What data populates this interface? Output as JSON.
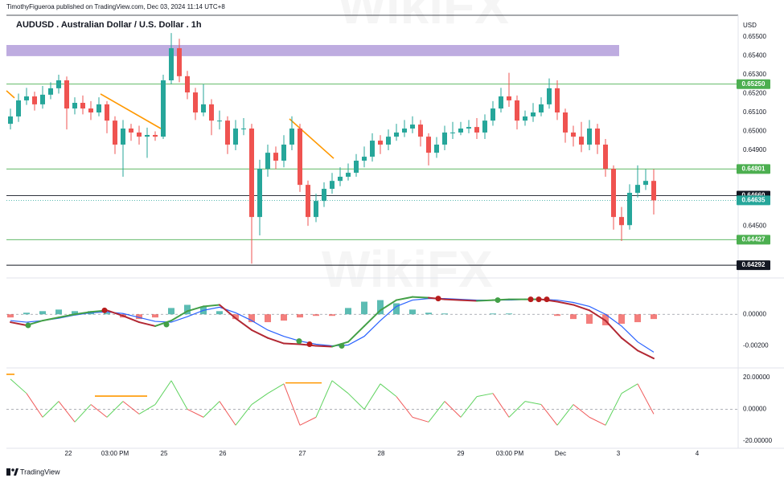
{
  "header": {
    "author_line": "TimothyFigueroa published on TradingView.com, Dec 03, 2024 11:14 UTC+8"
  },
  "watermark": "WikiFX",
  "footer": {
    "brand": "TradingView"
  },
  "chart_data": [
    {
      "type": "candlestick",
      "title": "AUDUSD . Australian Dollar / U.S. Dollar . 1h",
      "y_unit": "USD",
      "up_color": "#26a69a",
      "down_color": "#ef5350",
      "xlim": [
        -0.5,
        90.5
      ],
      "ylim": [
        0.6425,
        0.6561
      ],
      "yticks": [
        {
          "value": 0.655,
          "label": "0.65500"
        },
        {
          "value": 0.654,
          "label": "0.65400"
        },
        {
          "value": 0.653,
          "label": "0.65300"
        },
        {
          "value": 0.652,
          "label": "0.65200"
        },
        {
          "value": 0.651,
          "label": "0.65100"
        },
        {
          "value": 0.65,
          "label": "0.65000"
        },
        {
          "value": 0.649,
          "label": "0.64900"
        },
        {
          "value": 0.645,
          "label": "0.64500"
        }
      ],
      "zone": {
        "x": [
          -0.5,
          75.7
        ],
        "y": [
          0.65398,
          0.65457
        ],
        "color": "#b39ddb"
      },
      "levels": [
        {
          "value": 0.6525,
          "label": "0.65250",
          "color": "#4caf50",
          "style": "solid"
        },
        {
          "value": 0.64801,
          "label": "0.64801",
          "color": "#4caf50",
          "style": "solid"
        },
        {
          "value": 0.6466,
          "label": "0.64660",
          "color": "#131722",
          "style": "solid"
        },
        {
          "value": 0.64635,
          "label": "0.64635",
          "color": "#26a69a",
          "style": "dotted"
        },
        {
          "value": 0.64427,
          "label": "0.64427",
          "color": "#4caf50",
          "style": "solid"
        },
        {
          "value": 0.64292,
          "label": "0.64292",
          "color": "#131722",
          "style": "solid"
        }
      ],
      "drawings": [
        {
          "points": [
            [
              -0.5,
              0.65215
            ],
            [
              0.5,
              0.65177
            ]
          ],
          "color": "#ff9800"
        },
        {
          "points": [
            [
              11.2,
              0.65198
            ],
            [
              18.7,
              0.65015
            ]
          ],
          "color": "#ff9800"
        },
        {
          "points": [
            [
              34.7,
              0.65066
            ],
            [
              40.2,
              0.64857
            ]
          ],
          "color": "#ff9800"
        }
      ],
      "ohlc": [
        [
          0.6504,
          0.6512,
          0.6501,
          0.65079
        ],
        [
          0.65079,
          0.652,
          0.6505,
          0.65164
        ],
        [
          0.65164,
          0.6523,
          0.6514,
          0.65185
        ],
        [
          0.65185,
          0.6521,
          0.6511,
          0.65143
        ],
        [
          0.65143,
          0.6524,
          0.6512,
          0.65194
        ],
        [
          0.65194,
          0.6526,
          0.6517,
          0.65228
        ],
        [
          0.65228,
          0.653,
          0.652,
          0.6527
        ],
        [
          0.6527,
          0.6529,
          0.6501,
          0.65121
        ],
        [
          0.65121,
          0.6518,
          0.6509,
          0.65151
        ],
        [
          0.65151,
          0.6519,
          0.6509,
          0.65121
        ],
        [
          0.65121,
          0.6516,
          0.6506,
          0.651
        ],
        [
          0.651,
          0.6518,
          0.6508,
          0.65143
        ],
        [
          0.65143,
          0.6516,
          0.6499,
          0.65057
        ],
        [
          0.65057,
          0.6508,
          0.6488,
          0.6493
        ],
        [
          0.6493,
          0.6506,
          0.6476,
          0.65015
        ],
        [
          0.65015,
          0.6504,
          0.6495,
          0.64994
        ],
        [
          0.64994,
          0.6503,
          0.6493,
          0.64972
        ],
        [
          0.64972,
          0.6502,
          0.6486,
          0.64981
        ],
        [
          0.64981,
          0.65,
          0.6495,
          0.64972
        ],
        [
          0.64972,
          0.653,
          0.6496,
          0.6527
        ],
        [
          0.6527,
          0.6552,
          0.6525,
          0.6544
        ],
        [
          0.6544,
          0.6549,
          0.6526,
          0.65292
        ],
        [
          0.65292,
          0.6532,
          0.6517,
          0.65206
        ],
        [
          0.65206,
          0.6523,
          0.6506,
          0.651
        ],
        [
          0.651,
          0.6525,
          0.6508,
          0.65143
        ],
        [
          0.65143,
          0.6517,
          0.6498,
          0.65057
        ],
        [
          0.65057,
          0.6511,
          0.6501,
          0.65057
        ],
        [
          0.65057,
          0.6508,
          0.6488,
          0.6493
        ],
        [
          0.6493,
          0.6506,
          0.649,
          0.65015
        ],
        [
          0.65015,
          0.6507,
          0.6498,
          0.65015
        ],
        [
          0.65015,
          0.6504,
          0.643,
          0.64547
        ],
        [
          0.64547,
          0.6485,
          0.6445,
          0.64802
        ],
        [
          0.64802,
          0.6493,
          0.6476,
          0.64887
        ],
        [
          0.64887,
          0.6492,
          0.648,
          0.64845
        ],
        [
          0.64845,
          0.6498,
          0.6481,
          0.6493
        ],
        [
          0.6493,
          0.6508,
          0.649,
          0.65015
        ],
        [
          0.65015,
          0.6504,
          0.6468,
          0.64717
        ],
        [
          0.64717,
          0.6474,
          0.645,
          0.64547
        ],
        [
          0.64547,
          0.6467,
          0.6452,
          0.64632
        ],
        [
          0.64632,
          0.6473,
          0.646,
          0.64696
        ],
        [
          0.64696,
          0.6478,
          0.6467,
          0.64738
        ],
        [
          0.64738,
          0.6481,
          0.6471,
          0.6476
        ],
        [
          0.6476,
          0.6483,
          0.6474,
          0.64781
        ],
        [
          0.64781,
          0.6488,
          0.6476,
          0.64845
        ],
        [
          0.64845,
          0.6492,
          0.6481,
          0.64866
        ],
        [
          0.64866,
          0.6499,
          0.6484,
          0.64951
        ],
        [
          0.64951,
          0.6498,
          0.6488,
          0.6493
        ],
        [
          0.6493,
          0.6501,
          0.649,
          0.64972
        ],
        [
          0.64972,
          0.6504,
          0.6495,
          0.64994
        ],
        [
          0.64994,
          0.6506,
          0.6497,
          0.65015
        ],
        [
          0.65015,
          0.6508,
          0.6499,
          0.65036
        ],
        [
          0.65036,
          0.6506,
          0.6492,
          0.64972
        ],
        [
          0.64972,
          0.6499,
          0.6482,
          0.64887
        ],
        [
          0.64887,
          0.6497,
          0.6486,
          0.6493
        ],
        [
          0.6493,
          0.6503,
          0.649,
          0.64994
        ],
        [
          0.64994,
          0.6505,
          0.6496,
          0.64994
        ],
        [
          0.64994,
          0.6505,
          0.6498,
          0.65015
        ],
        [
          0.65015,
          0.6506,
          0.6499,
          0.65023
        ],
        [
          0.65023,
          0.6507,
          0.6496,
          0.64994
        ],
        [
          0.64994,
          0.6509,
          0.6496,
          0.65057
        ],
        [
          0.65057,
          0.6516,
          0.6503,
          0.65121
        ],
        [
          0.65121,
          0.6523,
          0.651,
          0.65185
        ],
        [
          0.65185,
          0.6531,
          0.6513,
          0.65164
        ],
        [
          0.65164,
          0.6519,
          0.6501,
          0.65057
        ],
        [
          0.65057,
          0.6511,
          0.6503,
          0.65079
        ],
        [
          0.65079,
          0.6515,
          0.6505,
          0.651
        ],
        [
          0.651,
          0.6518,
          0.6508,
          0.65143
        ],
        [
          0.65143,
          0.6528,
          0.6512,
          0.65228
        ],
        [
          0.65228,
          0.6527,
          0.6506,
          0.651
        ],
        [
          0.651,
          0.6512,
          0.6494,
          0.64994
        ],
        [
          0.64994,
          0.6503,
          0.6492,
          0.64972
        ],
        [
          0.64972,
          0.6505,
          0.6489,
          0.6493
        ],
        [
          0.6493,
          0.6506,
          0.649,
          0.65015
        ],
        [
          0.65015,
          0.6504,
          0.6488,
          0.6493
        ],
        [
          0.6493,
          0.6496,
          0.6476,
          0.64802
        ],
        [
          0.64802,
          0.6482,
          0.6448,
          0.64547
        ],
        [
          0.64547,
          0.646,
          0.6442,
          0.64504
        ],
        [
          0.64504,
          0.6472,
          0.6448,
          0.64675
        ],
        [
          0.64675,
          0.6482,
          0.6465,
          0.64717
        ],
        [
          0.64717,
          0.648,
          0.6469,
          0.64738
        ],
        [
          0.64738,
          0.648,
          0.6456,
          0.64635
        ]
      ]
    },
    {
      "type": "macd",
      "xlim": [
        -0.5,
        90.5
      ],
      "ylim": [
        -0.00325,
        0.002
      ],
      "yticks": [
        {
          "value": 0,
          "label": "0.00000"
        },
        {
          "value": -0.002,
          "label": "-0.00200"
        }
      ],
      "zero_line": "dashed",
      "x": [
        0,
        2,
        4,
        6,
        8,
        10,
        12,
        14,
        16,
        18,
        20,
        22,
        24,
        26,
        28,
        30,
        32,
        34,
        36,
        38,
        40,
        42,
        44,
        46,
        48,
        50,
        52,
        54,
        56,
        58,
        60,
        62,
        64,
        66,
        68,
        70,
        72,
        74,
        76,
        78,
        80
      ],
      "histogram": {
        "up_color": "#26a69a",
        "down_color": "#ef5350",
        "values": [
          -0.0002,
          0.0001,
          0.0002,
          0.0003,
          0.0002,
          0.0002,
          0.0001,
          -0.0002,
          -0.0003,
          -0.0002,
          0.0004,
          0.0006,
          0.0005,
          0.0002,
          -0.0003,
          -0.0005,
          -0.0005,
          -0.0004,
          -0.0002,
          -0.0001,
          -0.0001,
          0.0004,
          0.0008,
          0.0009,
          0.0007,
          0.0003,
          0.0001,
          5e-05,
          0,
          0,
          5e-05,
          5e-05,
          0,
          0,
          -0.0001,
          -0.0003,
          -0.0006,
          -0.0007,
          -0.0006,
          -0.0005,
          -0.0003
        ]
      },
      "macd": {
        "up_color": "#43a047",
        "down_color": "#b22833",
        "values": [
          -0.0005,
          -0.0007,
          -0.0004,
          -0.0002,
          0,
          0.00015,
          0.00025,
          -0.0001,
          -0.0005,
          -0.00075,
          -0.0004,
          0.0002,
          0.0005,
          0.0006,
          -0.00025,
          -0.001,
          -0.0015,
          -0.00185,
          -0.0019,
          -0.002,
          -0.00205,
          -0.00175,
          -0.00075,
          0.00025,
          0.0009,
          0.0011,
          0.00105,
          0.00095,
          0.0009,
          0.00085,
          0.0009,
          0.00095,
          0.00095,
          0.00095,
          0.0008,
          0.0006,
          0.00025,
          -0.0004,
          -0.0015,
          -0.0023,
          -0.0028
        ]
      },
      "signal": {
        "color": "#2962ff",
        "values": [
          -0.0004,
          -0.0005,
          -0.0004,
          -0.00025,
          -5e-05,
          0.0001,
          0.00015,
          5e-05,
          -0.0002,
          -0.00045,
          -0.0005,
          -0.00015,
          0.00025,
          0.00045,
          0.0001,
          -0.0004,
          -0.001,
          -0.0014,
          -0.0017,
          -0.0019,
          -0.002,
          -0.00195,
          -0.0014,
          -0.0004,
          0.0005,
          0.0009,
          0.001,
          0.001,
          0.00095,
          0.0009,
          0.0009,
          0.0009,
          0.00095,
          0.00095,
          0.0009,
          0.00075,
          0.0005,
          0,
          -0.00075,
          -0.00175,
          -0.0024
        ]
      },
      "crosses": {
        "x": [
          2.2,
          11.7,
          19.4,
          35.9,
          37.2,
          41.2,
          53.2,
          60.6,
          64.7,
          65.7,
          66.7
        ],
        "values": [
          -0.0007,
          0.00025,
          -0.00065,
          -0.0017,
          -0.0019,
          -0.002,
          0.001,
          0.0009,
          0.00095,
          0.00095,
          0.00095
        ],
        "colors": [
          "#43a047",
          "#b71c1c",
          "#43a047",
          "#43a047",
          "#b71c1c",
          "#43a047",
          "#b71c1c",
          "#43a047",
          "#b71c1c",
          "#b71c1c",
          "#b71c1c"
        ]
      }
    },
    {
      "type": "line",
      "xlim": [
        -0.5,
        90.5
      ],
      "ylim": [
        -23,
        25
      ],
      "yticks": [
        {
          "value": 20,
          "label": "20.00000"
        },
        {
          "value": 0,
          "label": "0.00000"
        },
        {
          "value": -20,
          "label": "-20.00000"
        }
      ],
      "zero_line": "dashed",
      "up_color": "#5fd35f",
      "down_color": "#f05a5a",
      "x": [
        0,
        2,
        4,
        6,
        8,
        10,
        12,
        14,
        16,
        18,
        20,
        22,
        24,
        26,
        28,
        30,
        32,
        34,
        36,
        38,
        40,
        42,
        44,
        46,
        48,
        50,
        52,
        54,
        56,
        58,
        60,
        62,
        64,
        66,
        68,
        70,
        72,
        74,
        76,
        78,
        80
      ],
      "values": [
        19,
        10,
        -5,
        5,
        -8,
        3,
        -5,
        5,
        -3,
        3,
        18,
        0,
        -5,
        5,
        -10,
        3,
        10,
        16,
        -10,
        -5,
        18,
        10,
        0,
        16,
        8,
        -5,
        -8,
        5,
        -5,
        8,
        10,
        -5,
        5,
        3,
        -10,
        3,
        -5,
        -10,
        10,
        16,
        -3
      ],
      "drawings": [
        {
          "points": [
            [
              -0.5,
              22
            ],
            [
              0.5,
              22
            ]
          ],
          "color": "#ff9800"
        },
        {
          "points": [
            [
              10.5,
              8.3
            ],
            [
              17,
              8.3
            ]
          ],
          "color": "#ff9800"
        },
        {
          "points": [
            [
              34.2,
              16.6
            ],
            [
              38.7,
              16.6
            ]
          ],
          "color": "#ff9800"
        }
      ],
      "xticks": [
        {
          "value": 7.2,
          "label": "22"
        },
        {
          "value": 13,
          "label": "03:00 PM"
        },
        {
          "value": 19.1,
          "label": "25"
        },
        {
          "value": 26.4,
          "label": "26"
        },
        {
          "value": 36.3,
          "label": "27"
        },
        {
          "value": 46.1,
          "label": "28"
        },
        {
          "value": 56,
          "label": "29"
        },
        {
          "value": 62.1,
          "label": "03:00 PM"
        },
        {
          "value": 68.4,
          "label": "Dec"
        },
        {
          "value": 75.6,
          "label": "3"
        },
        {
          "value": 85.4,
          "label": "4"
        }
      ]
    }
  ]
}
